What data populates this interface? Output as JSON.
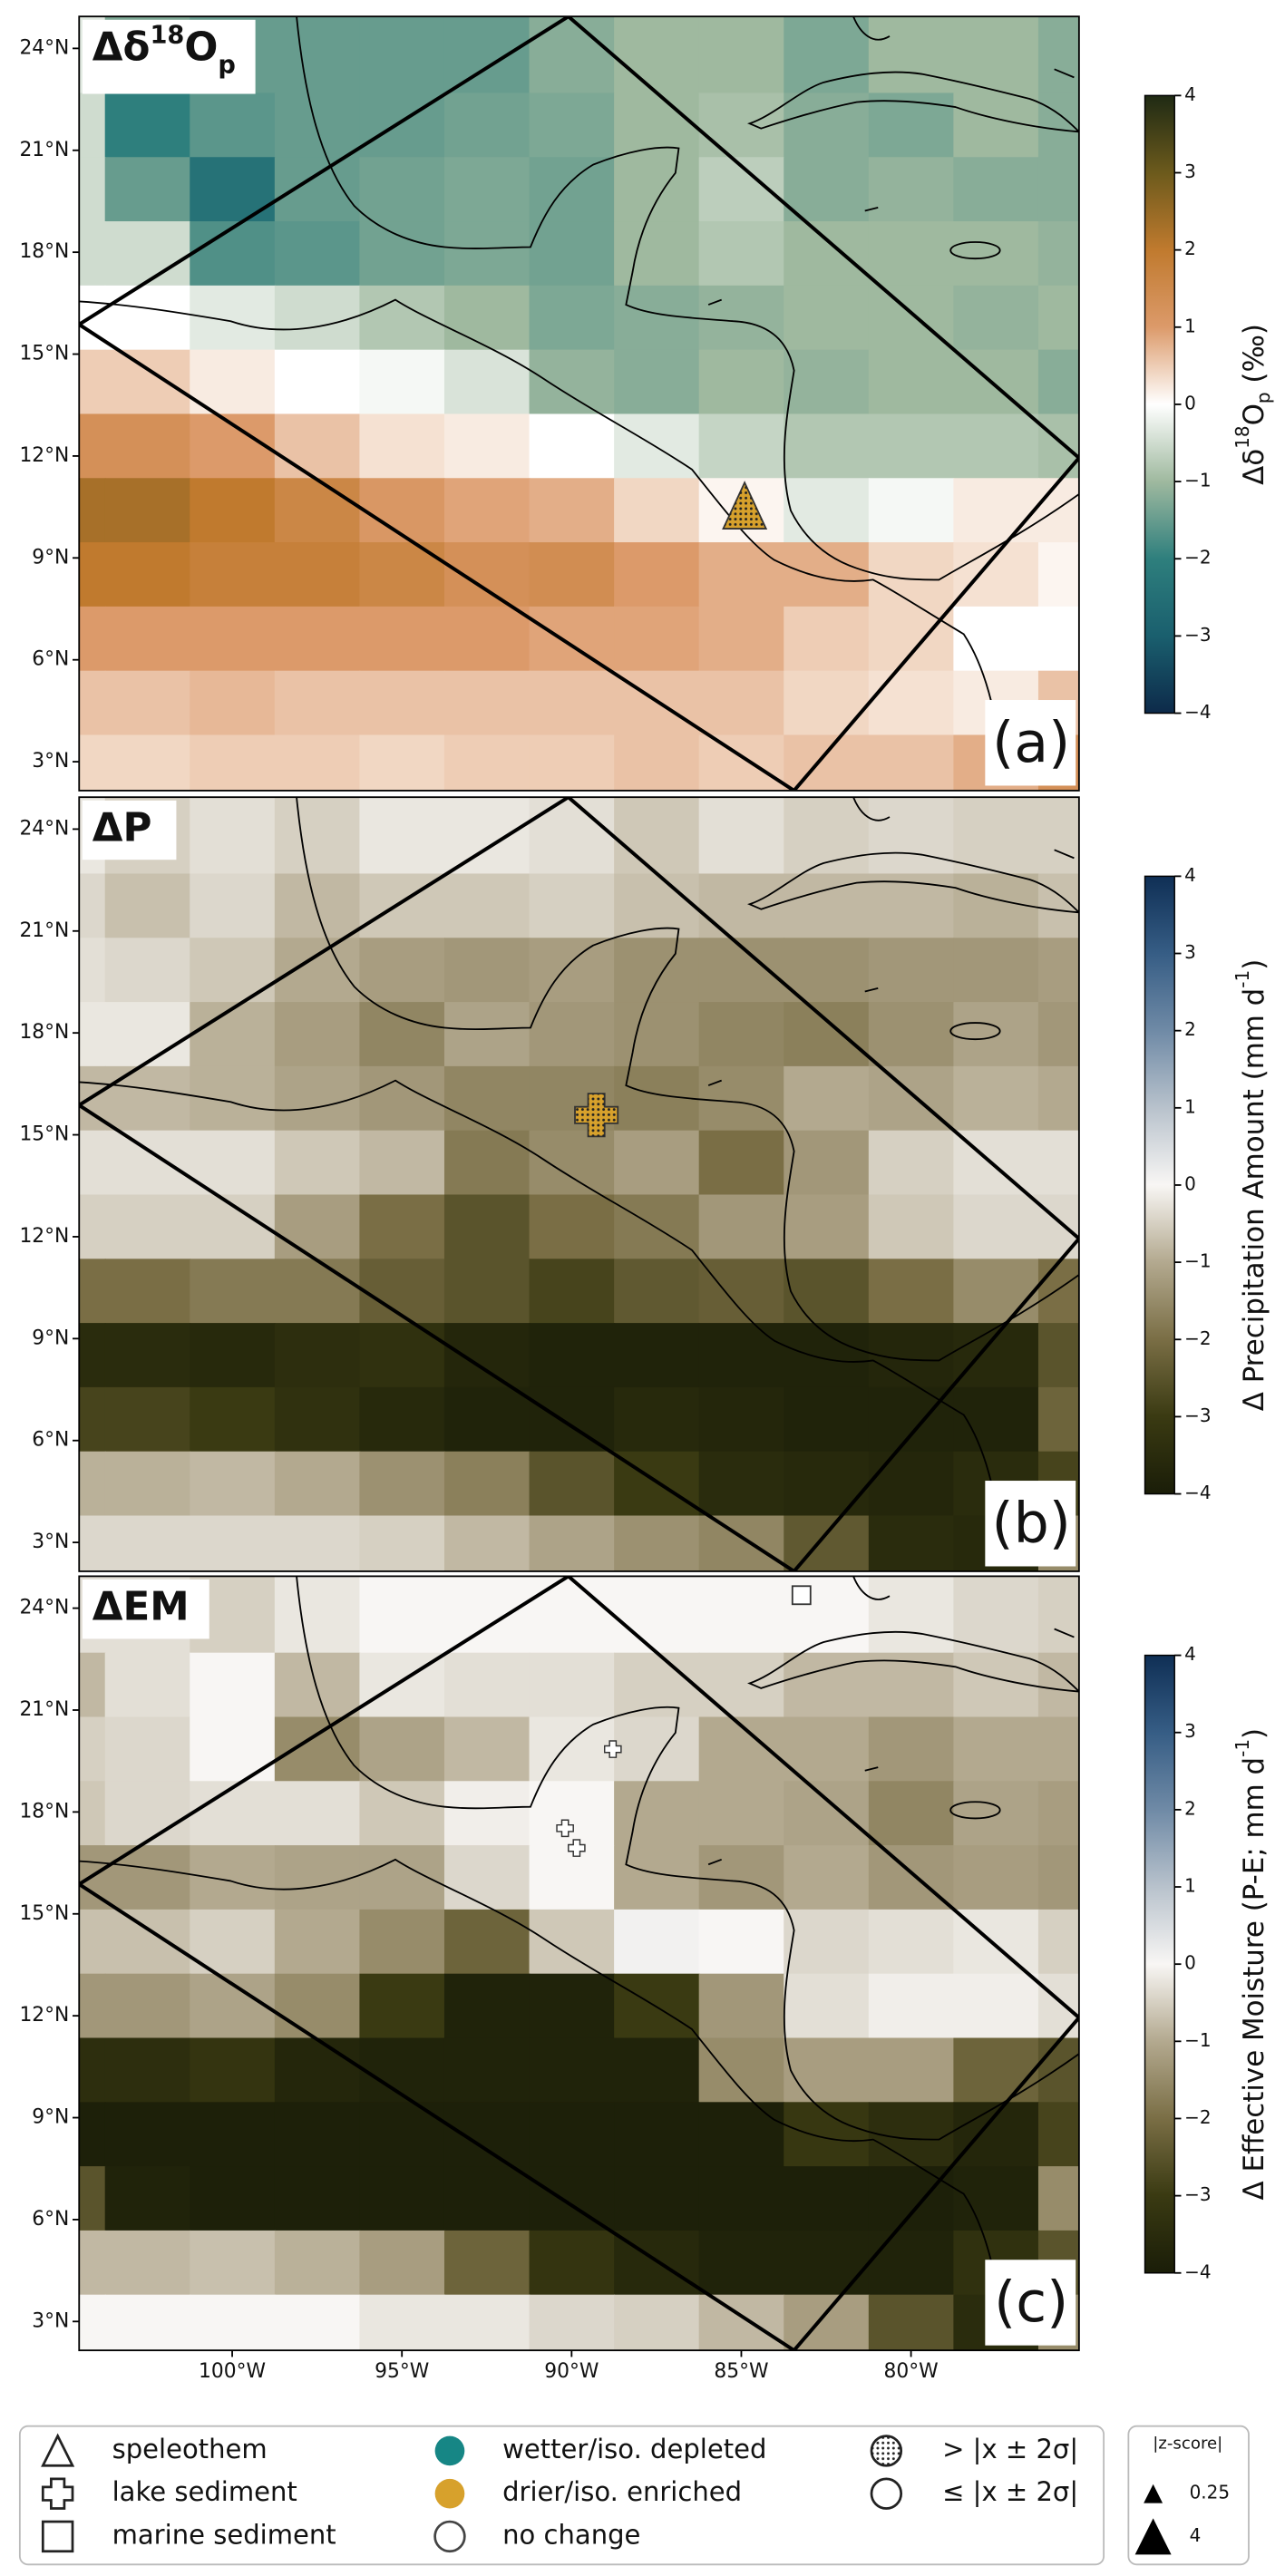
{
  "chart_data": [
    {
      "type": "heatmap",
      "title": [
        "Δδ",
        "18",
        "O",
        "p"
      ],
      "label": "(a)",
      "colorbar_label": [
        "Δδ",
        "18",
        "O",
        "p",
        " (‰)"
      ],
      "clim": [
        -4,
        4
      ],
      "colors": [
        "#0d2a4a",
        "#1a5f6e",
        "#2e7f7d",
        "#9fb99f",
        "#ffffff",
        "#dc9a6a",
        "#c07a2e",
        "#6c5a1c",
        "#1f2a14"
      ],
      "colorbar_ticks": [
        4,
        3,
        2,
        1,
        0,
        {
          "value": -1,
          "label": "−1"
        },
        {
          "value": -2,
          "label": "−2"
        },
        {
          "value": -3,
          "label": "−3"
        },
        {
          "value": -4,
          "label": "−4"
        }
      ],
      "xlim": [
        -104.51,
        -75.05
      ],
      "ylim": [
        2.15,
        24.94
      ],
      "yticks": [
        {
          "value": 24,
          "label": "24°N"
        },
        {
          "value": 21,
          "label": "21°N"
        },
        {
          "value": 18,
          "label": "18°N"
        },
        {
          "value": 15,
          "label": "15°N"
        },
        {
          "value": 12,
          "label": "12°N"
        },
        {
          "value": 9,
          "label": "9°N"
        },
        {
          "value": 6,
          "label": "6°N"
        },
        {
          "value": 3,
          "label": "3°N"
        }
      ],
      "values": [
        [
          -0.3,
          -1.3,
          -1.5,
          -1.5,
          -1.5,
          -1.5,
          -1.2,
          -1.0,
          -1.0,
          -1.3,
          -1.0,
          -1.0,
          -1.2
        ],
        [
          -0.5,
          -2.0,
          -1.6,
          -1.5,
          -1.5,
          -1.4,
          -1.3,
          -1.0,
          -0.9,
          -1.2,
          -1.3,
          -1.0,
          -1.2
        ],
        [
          -0.5,
          -1.5,
          -2.4,
          -1.5,
          -1.4,
          -1.3,
          -1.4,
          -1.0,
          -0.7,
          -1.2,
          -1.1,
          -1.2,
          -1.2
        ],
        [
          -0.5,
          -0.5,
          -1.7,
          -1.6,
          -1.4,
          -1.3,
          -1.4,
          -1.0,
          -0.8,
          -1.0,
          -1.0,
          -1.0,
          -1.1
        ],
        [
          0,
          0,
          -0.3,
          -0.5,
          -0.8,
          -1.0,
          -1.3,
          -1.2,
          -1.1,
          -1.0,
          -1.0,
          -1.1,
          -1.0
        ],
        [
          0.5,
          0.5,
          0.2,
          0,
          -0.1,
          -0.4,
          -1.1,
          -1.2,
          -1.0,
          -1.1,
          -1.0,
          -1.0,
          -1.2
        ],
        [
          1.3,
          1.3,
          1.0,
          0.6,
          0.3,
          0.2,
          0,
          -0.3,
          -0.6,
          -0.8,
          -0.8,
          -0.8,
          -0.9
        ],
        [
          2.3,
          2.3,
          2.0,
          1.6,
          1.1,
          0.9,
          0.8,
          0.4,
          0.1,
          -0.3,
          -0.1,
          0.2,
          0.2
        ],
        [
          2.0,
          2.0,
          1.8,
          1.8,
          1.6,
          1.3,
          1.4,
          1.0,
          0.8,
          0.8,
          0.4,
          0.3,
          0.1
        ],
        [
          1.0,
          1.0,
          1.0,
          1.0,
          1.0,
          1.0,
          0.9,
          0.9,
          0.8,
          0.5,
          0.4,
          0,
          0
        ],
        [
          0.6,
          0.6,
          0.7,
          0.6,
          0.6,
          0.6,
          0.6,
          0.6,
          0.6,
          0.4,
          0.3,
          0.2,
          0.6
        ],
        [
          0.4,
          0.4,
          0.5,
          0.5,
          0.4,
          0.5,
          0.5,
          0.6,
          0.5,
          0.6,
          0.6,
          0.8,
          1.3
        ]
      ]
    },
    {
      "type": "heatmap",
      "title": [
        "ΔP"
      ],
      "label": "(b)",
      "colorbar_label": [
        "Δ Precipitation Amount (mm d",
        "-1",
        ")"
      ],
      "clim": [
        -4,
        4
      ],
      "colors": [
        "#1a1d08",
        "#3a3a12",
        "#7a6e45",
        "#b3a98f",
        "#f8f6f4",
        "#b8c2cc",
        "#6f8aa6",
        "#365d85",
        "#0f2f55"
      ],
      "colorbar_ticks": [
        4,
        3,
        2,
        1,
        0,
        {
          "value": -1,
          "label": "−1"
        },
        {
          "value": -2,
          "label": "−2"
        },
        {
          "value": -3,
          "label": "−3"
        },
        {
          "value": -4,
          "label": "−4"
        }
      ],
      "xlim": [
        -104.51,
        -75.05
      ],
      "ylim": [
        2.15,
        24.94
      ],
      "yticks": [
        {
          "value": 24,
          "label": "24°N"
        },
        {
          "value": 21,
          "label": "21°N"
        },
        {
          "value": 18,
          "label": "18°N"
        },
        {
          "value": 15,
          "label": "15°N"
        },
        {
          "value": 12,
          "label": "12°N"
        },
        {
          "value": 9,
          "label": "9°N"
        },
        {
          "value": 6,
          "label": "6°N"
        },
        {
          "value": 3,
          "label": "3°N"
        }
      ],
      "values": [
        [
          -0.2,
          -0.5,
          -0.3,
          -0.5,
          -0.2,
          -0.2,
          -0.3,
          -0.6,
          -0.3,
          -0.5,
          -0.4,
          -0.5,
          -0.5
        ],
        [
          -0.4,
          -0.7,
          -0.4,
          -0.8,
          -0.6,
          -0.6,
          -0.5,
          -0.7,
          -0.8,
          -0.8,
          -0.8,
          -0.9,
          -0.7
        ],
        [
          -0.3,
          -0.4,
          -0.6,
          -1.0,
          -1.2,
          -1.3,
          -1.2,
          -1.4,
          -1.4,
          -1.4,
          -1.3,
          -1.3,
          -1.2
        ],
        [
          -0.2,
          -0.2,
          -0.9,
          -1.2,
          -1.6,
          -1.1,
          -1.3,
          -1.4,
          -1.6,
          -1.7,
          -1.4,
          -1.1,
          -1.3
        ],
        [
          -0.8,
          -0.8,
          -0.9,
          -1.1,
          -1.3,
          -1.6,
          -1.6,
          -1.7,
          -1.5,
          -1.0,
          -1.1,
          -0.9,
          -1.0
        ],
        [
          -0.3,
          -0.3,
          -0.3,
          -0.6,
          -0.8,
          -1.8,
          -1.5,
          -1.2,
          -2.0,
          -1.3,
          -0.5,
          -0.3,
          -0.3
        ],
        [
          -0.5,
          -0.5,
          -0.5,
          -1.2,
          -2.0,
          -2.5,
          -2.0,
          -1.8,
          -1.3,
          -1.2,
          -0.6,
          -0.4,
          -0.4
        ],
        [
          -2.0,
          -2.0,
          -1.8,
          -1.8,
          -2.3,
          -2.5,
          -2.8,
          -2.4,
          -2.3,
          -2.5,
          -2.0,
          -1.5,
          -2.0
        ],
        [
          -3.5,
          -3.5,
          -3.6,
          -3.4,
          -3.3,
          -3.7,
          -3.8,
          -3.8,
          -3.8,
          -3.8,
          -3.7,
          -3.6,
          -2.5
        ],
        [
          -2.8,
          -2.8,
          -3.0,
          -3.3,
          -3.6,
          -3.8,
          -3.8,
          -3.6,
          -3.7,
          -3.8,
          -3.8,
          -3.8,
          -2.2
        ],
        [
          -0.9,
          -0.9,
          -0.8,
          -1.0,
          -1.4,
          -1.7,
          -2.5,
          -3.0,
          -3.5,
          -3.6,
          -3.7,
          -3.5,
          -2.8
        ],
        [
          -0.4,
          -0.4,
          -0.4,
          -0.4,
          -0.5,
          -0.8,
          -1.1,
          -1.4,
          -1.6,
          -2.4,
          -3.5,
          -3.6,
          -1.5
        ]
      ]
    },
    {
      "type": "heatmap",
      "title": [
        "ΔEM"
      ],
      "label": "(c)",
      "colorbar_label": [
        "Δ Effective Moisture (P-E; mm d",
        "-1",
        ")"
      ],
      "clim": [
        -4,
        4
      ],
      "colors": [
        "#1a1d08",
        "#3a3a12",
        "#7a6e45",
        "#b3a98f",
        "#f8f6f4",
        "#b8c2cc",
        "#6f8aa6",
        "#365d85",
        "#0f2f55"
      ],
      "colorbar_ticks": [
        4,
        3,
        2,
        1,
        0,
        {
          "value": -1,
          "label": "−1"
        },
        {
          "value": -2,
          "label": "−2"
        },
        {
          "value": -3,
          "label": "−3"
        },
        {
          "value": -4,
          "label": "−4"
        }
      ],
      "xlim": [
        -104.51,
        -75.05
      ],
      "ylim": [
        2.15,
        24.94
      ],
      "xticks": [
        {
          "value": -100,
          "label": "100°W"
        },
        {
          "value": -95,
          "label": "95°W"
        },
        {
          "value": -90,
          "label": "90°W"
        },
        {
          "value": -85,
          "label": "85°W"
        },
        {
          "value": -80,
          "label": "80°W"
        }
      ],
      "yticks": [
        {
          "value": 24,
          "label": "24°N"
        },
        {
          "value": 21,
          "label": "21°N"
        },
        {
          "value": 18,
          "label": "18°N"
        },
        {
          "value": 15,
          "label": "15°N"
        },
        {
          "value": 12,
          "label": "12°N"
        },
        {
          "value": 9,
          "label": "9°N"
        },
        {
          "value": 6,
          "label": "6°N"
        },
        {
          "value": 3,
          "label": "3°N"
        }
      ],
      "values": [
        [
          -0.3,
          -0.3,
          -0.5,
          -0.2,
          0,
          0,
          0,
          0,
          0,
          0,
          -0.2,
          -0.4,
          -0.5
        ],
        [
          -0.8,
          -0.3,
          0,
          -0.8,
          -0.2,
          -0.3,
          -0.3,
          -0.5,
          -0.5,
          -0.8,
          -0.8,
          -0.6,
          -0.8
        ],
        [
          -0.5,
          -0.4,
          0,
          -1.5,
          -1.1,
          -0.8,
          -0.2,
          -0.4,
          -1.0,
          -1.0,
          -1.3,
          -1.0,
          -1.0
        ],
        [
          -0.6,
          -0.4,
          -0.3,
          -0.3,
          -0.6,
          -0.1,
          0,
          -1.0,
          -1.0,
          -1.1,
          -1.6,
          -1.1,
          -1.2
        ],
        [
          -1.3,
          -1.3,
          -1.0,
          -1.1,
          -1.1,
          -0.4,
          0,
          -1.0,
          -1.3,
          -1.0,
          -1.3,
          -1.2,
          -1.3
        ],
        [
          -0.7,
          -0.7,
          -0.5,
          -1.0,
          -1.5,
          -2.2,
          -0.6,
          0.1,
          0,
          -0.4,
          -0.3,
          -0.2,
          -0.5
        ],
        [
          -1.3,
          -1.3,
          -1.1,
          -1.5,
          -3.0,
          -3.8,
          -3.8,
          -3.0,
          -1.3,
          -0.3,
          -0.1,
          -0.1,
          -0.3
        ],
        [
          -3.4,
          -3.4,
          -3.2,
          -3.7,
          -3.8,
          -3.8,
          -3.8,
          -3.8,
          -1.5,
          -1.2,
          -1.2,
          -2.2,
          -2.5
        ],
        [
          -3.9,
          -3.9,
          -3.9,
          -3.9,
          -3.9,
          -3.9,
          -3.9,
          -3.9,
          -3.9,
          -3.1,
          -3.4,
          -3.7,
          -2.8
        ],
        [
          -2.5,
          -3.8,
          -3.9,
          -3.9,
          -3.9,
          -3.9,
          -3.9,
          -3.9,
          -3.9,
          -3.9,
          -3.9,
          -3.8,
          -1.5
        ],
        [
          -0.8,
          -0.8,
          -0.7,
          -0.9,
          -1.2,
          -2.2,
          -3.2,
          -3.6,
          -3.8,
          -3.8,
          -3.8,
          -3.3,
          -2.5
        ],
        [
          0,
          0,
          0,
          0,
          -0.2,
          -0.2,
          -0.4,
          -0.5,
          -0.8,
          -1.2,
          -2.5,
          -3.5,
          -1.5
        ]
      ]
    }
  ],
  "legend": {
    "proxy_types": [
      "speleothem",
      "lake sediment",
      "marine sediment"
    ],
    "directions": [
      {
        "name": "wetter/iso. depleted",
        "color": "#168685"
      },
      {
        "name": "drier/iso. enriched",
        "color": "#d7a12c"
      },
      {
        "name": "no change"
      }
    ],
    "significance": [
      "> |x ± 2σ|",
      "≤ |x ± 2σ|"
    ]
  },
  "size_legend": {
    "title": "|z-score|",
    "entries": [
      0.25,
      4
    ]
  }
}
